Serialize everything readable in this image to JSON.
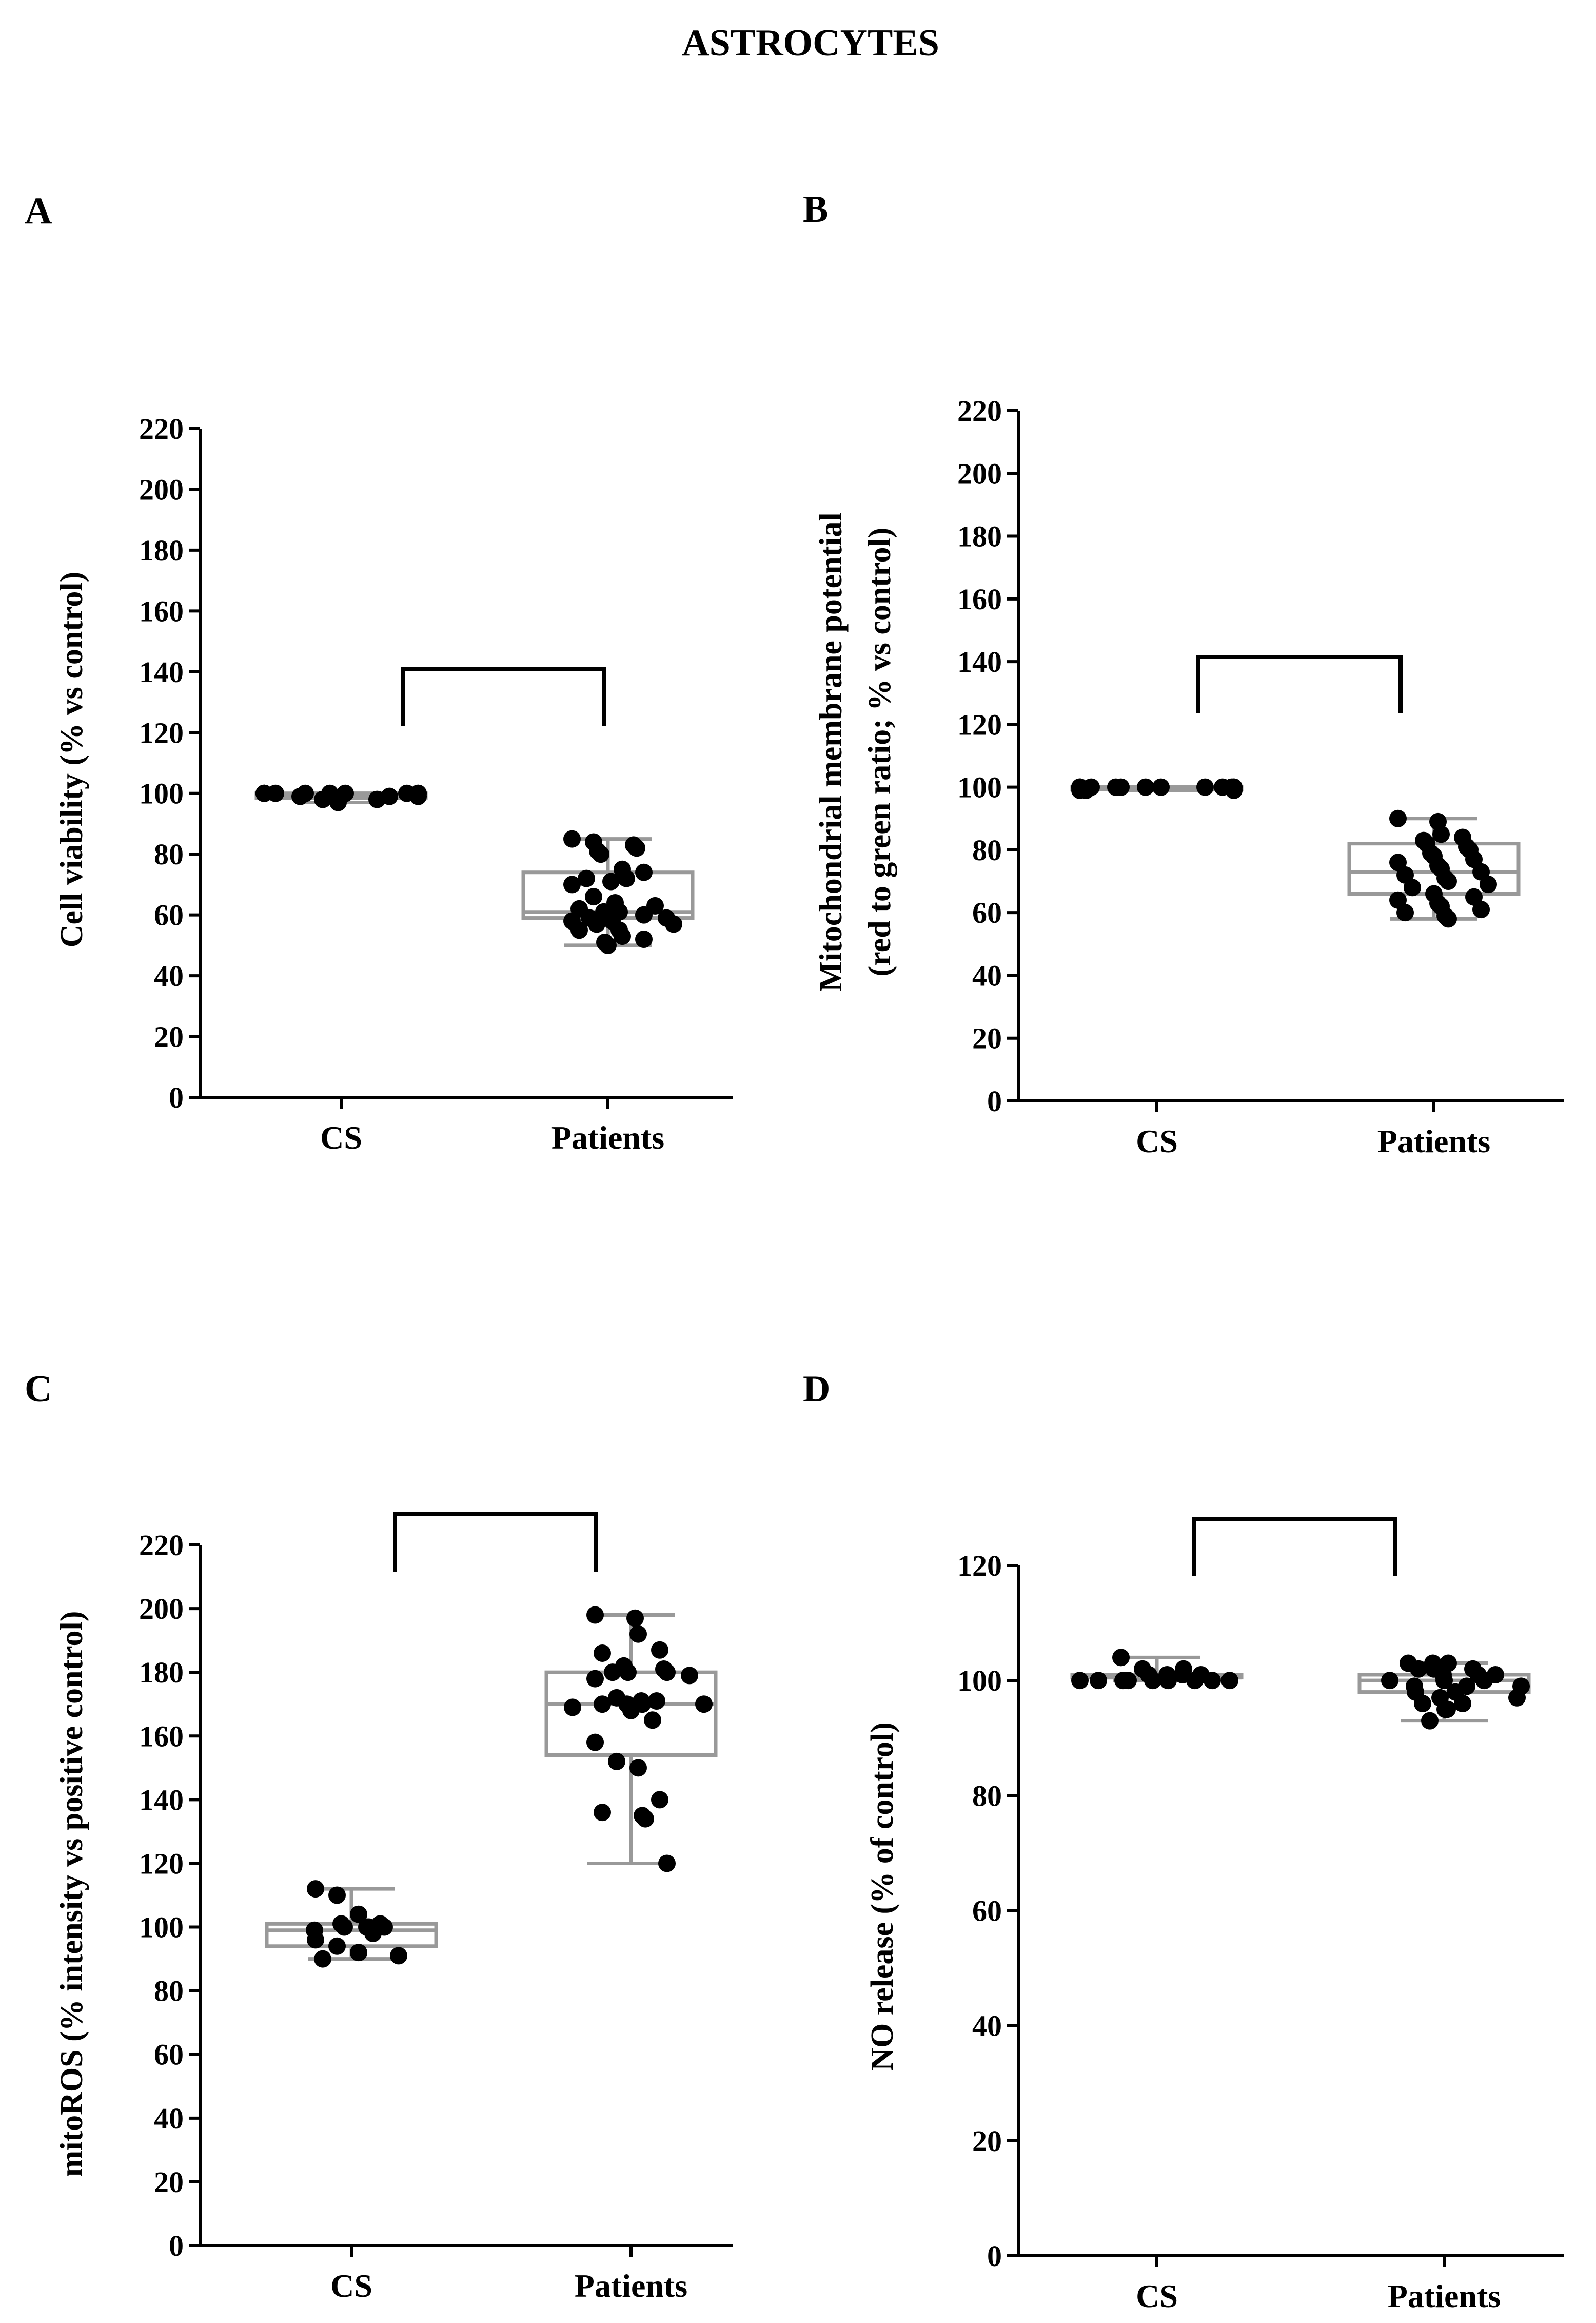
{
  "figure_title": "ASTROCYTES",
  "chart_data": [
    {
      "panel": "A",
      "type": "scatter",
      "title": "",
      "xlabel": "",
      "ylabel": "Cell viability (% vs control)",
      "categories": [
        "CS",
        "Patients"
      ],
      "ylim": [
        0,
        220
      ],
      "yticks": [
        0,
        20,
        40,
        60,
        80,
        100,
        120,
        140,
        160,
        180,
        200,
        220
      ],
      "significance_bracket": [
        "CS",
        "Patients"
      ],
      "series": [
        {
          "name": "CS",
          "values": [
            100,
            100,
            100,
            100,
            100,
            99,
            99,
            98,
            97,
            98,
            99,
            100,
            100,
            100,
            100,
            100
          ],
          "box": {
            "min": 97,
            "q1": 98.5,
            "median": 99.5,
            "q3": 100,
            "max": 100
          }
        },
        {
          "name": "Patients",
          "values": [
            85,
            84,
            83,
            82,
            81,
            80,
            75,
            74,
            72,
            72,
            71,
            70,
            66,
            64,
            63,
            62,
            61,
            61,
            60,
            60,
            59,
            59,
            58,
            58,
            57,
            57,
            55,
            55,
            53,
            52,
            51,
            50
          ],
          "box": {
            "min": 50,
            "q1": 59,
            "median": 61,
            "q3": 74,
            "max": 85
          }
        }
      ]
    },
    {
      "panel": "B",
      "type": "scatter",
      "title": "",
      "xlabel": "",
      "ylabel": "Mitochondrial membrane potential (red to green ratio; % vs control)",
      "ylabel_lines": [
        "Mitochondrial membrane potential",
        "(red to green ratio; % vs control)"
      ],
      "categories": [
        "CS",
        "Patients"
      ],
      "ylim": [
        0,
        220
      ],
      "yticks": [
        0,
        20,
        40,
        60,
        80,
        100,
        120,
        140,
        160,
        180,
        200,
        220
      ],
      "significance_bracket": [
        "CS",
        "Patients"
      ],
      "series": [
        {
          "name": "CS",
          "values": [
            100,
            100,
            100,
            100,
            100,
            100,
            100,
            99,
            99,
            99,
            99,
            100,
            100,
            100,
            100,
            100,
            100
          ],
          "box": {
            "min": 99,
            "q1": 99.5,
            "median": 100,
            "q3": 100,
            "max": 100
          }
        },
        {
          "name": "Patients",
          "values": [
            90,
            89,
            85,
            84,
            83,
            82,
            81,
            80,
            79,
            78,
            77,
            76,
            75,
            74,
            73,
            72,
            71,
            70,
            69,
            68,
            66,
            65,
            64,
            63,
            62,
            61,
            60,
            59,
            58
          ],
          "box": {
            "min": 58,
            "q1": 66,
            "median": 73,
            "q3": 82,
            "max": 90
          }
        }
      ]
    },
    {
      "panel": "C",
      "type": "scatter",
      "title": "",
      "xlabel": "",
      "ylabel": "mitoROS (% intensity vs positive control)",
      "categories": [
        "CS",
        "Patients"
      ],
      "ylim": [
        0,
        220
      ],
      "yticks": [
        0,
        20,
        40,
        60,
        80,
        100,
        120,
        140,
        160,
        180,
        200,
        220
      ],
      "significance_bracket": [
        "CS",
        "Patients"
      ],
      "series": [
        {
          "name": "CS",
          "values": [
            112,
            110,
            104,
            101,
            101,
            100,
            100,
            100,
            100,
            99,
            98,
            96,
            94,
            92,
            91,
            90
          ],
          "box": {
            "min": 90,
            "q1": 94,
            "median": 99,
            "q3": 101,
            "max": 112
          }
        },
        {
          "name": "Patients",
          "values": [
            198,
            197,
            192,
            187,
            186,
            182,
            181,
            180,
            180,
            180,
            179,
            178,
            172,
            171,
            171,
            170,
            170,
            170,
            170,
            169,
            168,
            165,
            158,
            152,
            150,
            140,
            136,
            135,
            134,
            120
          ],
          "box": {
            "min": 120,
            "q1": 154,
            "median": 170,
            "q3": 180,
            "max": 198
          }
        }
      ]
    },
    {
      "panel": "D",
      "type": "scatter",
      "title": "",
      "xlabel": "",
      "ylabel": "NO release (% of control)",
      "categories": [
        "CS",
        "Patients"
      ],
      "ylim": [
        0,
        120
      ],
      "yticks": [
        0,
        20,
        40,
        60,
        80,
        100,
        120
      ],
      "significance_bracket": [
        "CS",
        "Patients"
      ],
      "series": [
        {
          "name": "CS",
          "values": [
            104,
            102,
            101,
            101,
            100,
            100,
            100,
            100,
            100,
            100,
            100,
            100,
            100,
            101,
            101,
            102
          ],
          "box": {
            "min": 100,
            "q1": 100.5,
            "median": 100.5,
            "q3": 101,
            "max": 104
          }
        },
        {
          "name": "Patients",
          "values": [
            103,
            103,
            103,
            102,
            102,
            102,
            101,
            101,
            101,
            100,
            100,
            100,
            99,
            99,
            99,
            98,
            98,
            97,
            97,
            96,
            96,
            95,
            95,
            93
          ],
          "box": {
            "min": 93,
            "q1": 98,
            "median": 100,
            "q3": 101,
            "max": 103
          }
        }
      ]
    }
  ]
}
